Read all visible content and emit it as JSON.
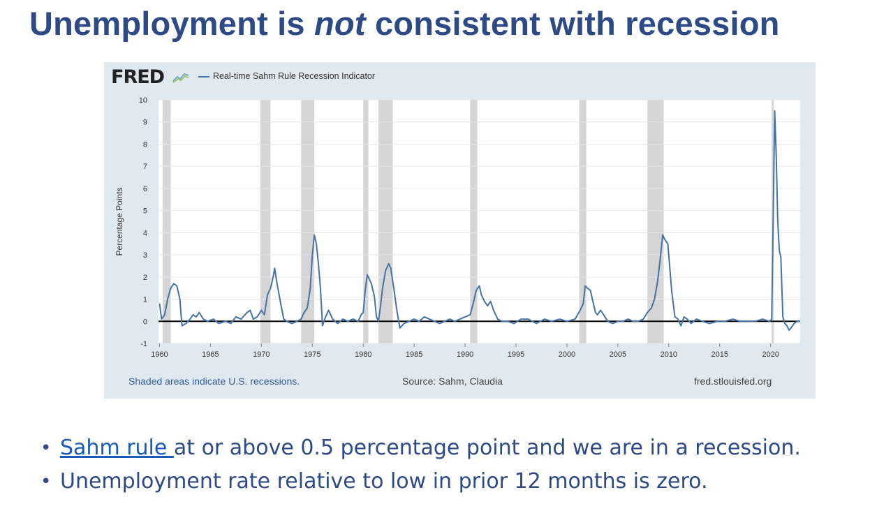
{
  "title": {
    "before": "Unemployment is ",
    "emph": "not",
    "after": " consistent with recession"
  },
  "fred": {
    "logo": "FRED",
    "legend": "Real-time Sahm Rule Recession Indicator"
  },
  "footer": {
    "note": "Shaded areas indicate U.S. recessions.",
    "source": "Source: Sahm, Claudia",
    "site": "fred.stlouisfed.org"
  },
  "bullets": [
    {
      "link": "Sahm rule ",
      "text": "at or above 0.5 percentage point and we are in a recession."
    },
    {
      "text": "Unemployment rate relative to low in prior 12 months is zero."
    }
  ],
  "colors": {
    "line": "#4572a7",
    "recession": "#d5d5d5",
    "grid": "#e6e6e6",
    "zero_line": "#000000",
    "title": "#2e4a86"
  },
  "chart_data": {
    "type": "line",
    "title": "Real-time Sahm Rule Recession Indicator",
    "ylabel": "Percentage Points",
    "xlabel": "",
    "xlim": [
      1959.9,
      2022.9
    ],
    "ylim": [
      -1,
      10
    ],
    "x_ticks": [
      1960,
      1965,
      1970,
      1975,
      1980,
      1985,
      1990,
      1995,
      2000,
      2005,
      2010,
      2015,
      2020
    ],
    "y_ticks": [
      -1,
      0,
      1,
      2,
      3,
      4,
      5,
      6,
      7,
      8,
      9,
      10
    ],
    "grid": true,
    "legend": "top-left",
    "recessions": [
      [
        1960.3,
        1961.1
      ],
      [
        1969.9,
        1970.9
      ],
      [
        1973.9,
        1975.2
      ],
      [
        1980.0,
        1980.5
      ],
      [
        1981.5,
        1982.9
      ],
      [
        1990.5,
        1991.2
      ],
      [
        2001.2,
        2001.9
      ],
      [
        2007.9,
        2009.5
      ],
      [
        2020.1,
        2020.3
      ]
    ],
    "series": [
      {
        "name": "Real-time Sahm Rule Recession Indicator",
        "points": [
          [
            1960.0,
            0.8
          ],
          [
            1960.2,
            0.1
          ],
          [
            1960.5,
            0.3
          ],
          [
            1960.8,
            1.0
          ],
          [
            1961.1,
            1.5
          ],
          [
            1961.4,
            1.7
          ],
          [
            1961.7,
            1.6
          ],
          [
            1962.0,
            1.0
          ],
          [
            1962.2,
            -0.2
          ],
          [
            1962.6,
            -0.1
          ],
          [
            1963.0,
            0.1
          ],
          [
            1963.3,
            0.3
          ],
          [
            1963.6,
            0.2
          ],
          [
            1963.9,
            0.4
          ],
          [
            1964.3,
            0.1
          ],
          [
            1964.7,
            0.0
          ],
          [
            1965.3,
            0.1
          ],
          [
            1965.8,
            -0.1
          ],
          [
            1966.5,
            0.0
          ],
          [
            1967.0,
            -0.1
          ],
          [
            1967.5,
            0.2
          ],
          [
            1968.0,
            0.1
          ],
          [
            1968.6,
            0.4
          ],
          [
            1968.9,
            0.5
          ],
          [
            1969.2,
            0.1
          ],
          [
            1969.6,
            0.2
          ],
          [
            1970.0,
            0.5
          ],
          [
            1970.3,
            0.3
          ],
          [
            1970.6,
            1.2
          ],
          [
            1970.9,
            1.5
          ],
          [
            1971.2,
            2.1
          ],
          [
            1971.3,
            2.4
          ],
          [
            1971.5,
            1.8
          ],
          [
            1971.7,
            1.3
          ],
          [
            1971.9,
            0.8
          ],
          [
            1972.2,
            0.1
          ],
          [
            1972.5,
            0.0
          ],
          [
            1973.0,
            -0.1
          ],
          [
            1973.5,
            0.0
          ],
          [
            1973.9,
            0.1
          ],
          [
            1974.2,
            0.4
          ],
          [
            1974.5,
            0.6
          ],
          [
            1974.8,
            1.5
          ],
          [
            1975.0,
            3.0
          ],
          [
            1975.2,
            3.9
          ],
          [
            1975.4,
            3.5
          ],
          [
            1975.6,
            2.6
          ],
          [
            1975.8,
            1.5
          ],
          [
            1976.0,
            -0.2
          ],
          [
            1976.3,
            0.2
          ],
          [
            1976.6,
            0.5
          ],
          [
            1977.0,
            0.1
          ],
          [
            1977.5,
            -0.1
          ],
          [
            1978.0,
            0.1
          ],
          [
            1978.5,
            0.0
          ],
          [
            1979.0,
            0.1
          ],
          [
            1979.5,
            0.0
          ],
          [
            1979.8,
            0.3
          ],
          [
            1980.0,
            0.4
          ],
          [
            1980.2,
            1.4
          ],
          [
            1980.4,
            2.1
          ],
          [
            1980.6,
            1.9
          ],
          [
            1980.8,
            1.7
          ],
          [
            1981.1,
            1.1
          ],
          [
            1981.3,
            0.2
          ],
          [
            1981.5,
            0.0
          ],
          [
            1981.7,
            0.7
          ],
          [
            1981.9,
            1.5
          ],
          [
            1982.2,
            2.3
          ],
          [
            1982.5,
            2.6
          ],
          [
            1982.7,
            2.4
          ],
          [
            1983.0,
            1.5
          ],
          [
            1983.3,
            0.5
          ],
          [
            1983.6,
            -0.3
          ],
          [
            1984.0,
            -0.1
          ],
          [
            1984.5,
            0.0
          ],
          [
            1985.0,
            0.1
          ],
          [
            1985.5,
            0.0
          ],
          [
            1986.0,
            0.2
          ],
          [
            1986.5,
            0.1
          ],
          [
            1987.0,
            0.0
          ],
          [
            1987.5,
            -0.1
          ],
          [
            1988.0,
            0.0
          ],
          [
            1988.5,
            0.1
          ],
          [
            1989.0,
            0.0
          ],
          [
            1989.5,
            0.1
          ],
          [
            1990.0,
            0.2
          ],
          [
            1990.5,
            0.3
          ],
          [
            1990.8,
            0.8
          ],
          [
            1991.1,
            1.4
          ],
          [
            1991.4,
            1.6
          ],
          [
            1991.6,
            1.2
          ],
          [
            1991.9,
            0.9
          ],
          [
            1992.2,
            0.7
          ],
          [
            1992.5,
            0.9
          ],
          [
            1992.8,
            0.5
          ],
          [
            1993.2,
            0.1
          ],
          [
            1993.6,
            0.0
          ],
          [
            1994.2,
            0.0
          ],
          [
            1994.8,
            -0.1
          ],
          [
            1995.5,
            0.1
          ],
          [
            1996.2,
            0.1
          ],
          [
            1997.0,
            -0.1
          ],
          [
            1997.8,
            0.1
          ],
          [
            1998.5,
            0.0
          ],
          [
            1999.3,
            0.1
          ],
          [
            2000.0,
            0.0
          ],
          [
            2000.8,
            0.1
          ],
          [
            2001.3,
            0.5
          ],
          [
            2001.6,
            0.8
          ],
          [
            2001.8,
            1.6
          ],
          [
            2002.0,
            1.5
          ],
          [
            2002.3,
            1.4
          ],
          [
            2002.5,
            1.0
          ],
          [
            2002.8,
            0.4
          ],
          [
            2003.0,
            0.3
          ],
          [
            2003.3,
            0.5
          ],
          [
            2003.6,
            0.3
          ],
          [
            2004.0,
            0.0
          ],
          [
            2004.5,
            -0.1
          ],
          [
            2005.0,
            0.0
          ],
          [
            2005.5,
            0.0
          ],
          [
            2006.0,
            0.1
          ],
          [
            2006.5,
            0.0
          ],
          [
            2007.0,
            0.0
          ],
          [
            2007.5,
            0.1
          ],
          [
            2007.9,
            0.4
          ],
          [
            2008.3,
            0.6
          ],
          [
            2008.6,
            1.0
          ],
          [
            2008.9,
            1.8
          ],
          [
            2009.2,
            3.0
          ],
          [
            2009.4,
            3.9
          ],
          [
            2009.6,
            3.7
          ],
          [
            2009.9,
            3.5
          ],
          [
            2010.1,
            2.4
          ],
          [
            2010.3,
            1.3
          ],
          [
            2010.6,
            0.2
          ],
          [
            2010.9,
            0.1
          ],
          [
            2011.2,
            -0.2
          ],
          [
            2011.5,
            0.2
          ],
          [
            2011.8,
            0.1
          ],
          [
            2012.2,
            -0.1
          ],
          [
            2012.7,
            0.1
          ],
          [
            2013.3,
            0.0
          ],
          [
            2014.0,
            -0.1
          ],
          [
            2014.8,
            0.0
          ],
          [
            2015.5,
            0.0
          ],
          [
            2016.3,
            0.1
          ],
          [
            2017.0,
            0.0
          ],
          [
            2017.8,
            0.0
          ],
          [
            2018.5,
            0.0
          ],
          [
            2019.2,
            0.1
          ],
          [
            2019.9,
            0.0
          ],
          [
            2020.1,
            0.1
          ],
          [
            2020.25,
            4.5
          ],
          [
            2020.4,
            9.5
          ],
          [
            2020.55,
            7.5
          ],
          [
            2020.7,
            4.5
          ],
          [
            2020.85,
            3.2
          ],
          [
            2021.0,
            2.9
          ],
          [
            2021.2,
            0.2
          ],
          [
            2021.4,
            -0.1
          ],
          [
            2021.6,
            -0.2
          ],
          [
            2021.8,
            -0.4
          ],
          [
            2022.0,
            -0.3
          ],
          [
            2022.3,
            -0.1
          ],
          [
            2022.6,
            0.0
          ],
          [
            2022.9,
            0.0
          ]
        ]
      }
    ]
  }
}
